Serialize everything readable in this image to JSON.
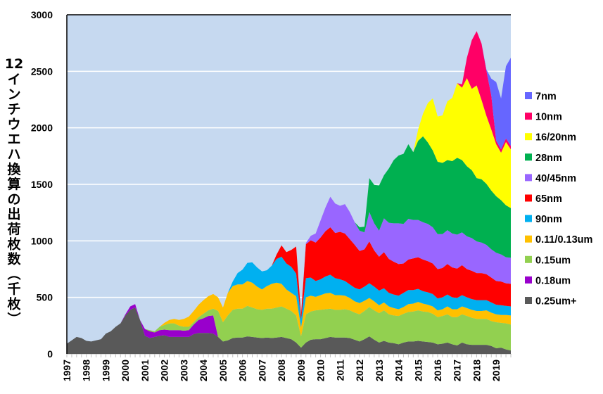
{
  "chart_data": {
    "type": "area",
    "stacked": true,
    "title": "",
    "ylabel": "12インチウエハ換算の出荷枚数（千枚）",
    "ylabel_parts": [
      "12",
      "イ",
      "ン",
      "チ",
      "ウ",
      "エ",
      "ハ",
      "換",
      "算",
      "の",
      "出",
      "荷",
      "枚",
      "数",
      "（",
      "千",
      "枚",
      "）"
    ],
    "xlabel": "",
    "ylim": [
      0,
      3000
    ],
    "yticks": [
      0,
      500,
      1000,
      1500,
      2000,
      2500,
      3000
    ],
    "ytick_labels": [
      "0",
      "500",
      "1000",
      "1500",
      "2000",
      "2500",
      "3000"
    ],
    "x_start_year": 1997,
    "x_end_year": 2019,
    "x_periods_per_year": 4,
    "xtick_labels": [
      "1997",
      "1998",
      "1999",
      "2000",
      "2001",
      "2002",
      "2003",
      "2004",
      "2005",
      "2006",
      "2007",
      "2008",
      "2009",
      "2010",
      "2011",
      "2012",
      "2013",
      "2014",
      "2015",
      "2016",
      "2017",
      "2018",
      "2019"
    ],
    "grid": true,
    "background": "#c6d9f0",
    "legend_position": "right",
    "series": [
      {
        "name": "0.25um+",
        "color": "#595959",
        "values": [
          90,
          120,
          150,
          140,
          115,
          110,
          120,
          130,
          180,
          200,
          240,
          270,
          340,
          390,
          410,
          300,
          160,
          140,
          150,
          160,
          165,
          150,
          150,
          150,
          150,
          150,
          175,
          185,
          185,
          185,
          180,
          150,
          110,
          120,
          140,
          145,
          145,
          155,
          150,
          145,
          140,
          145,
          140,
          145,
          150,
          140,
          130,
          100,
          55,
          100,
          125,
          130,
          130,
          140,
          150,
          145,
          145,
          145,
          140,
          125,
          110,
          130,
          155,
          125,
          100,
          115,
          100,
          95,
          85,
          100,
          110,
          110,
          115,
          110,
          105,
          100,
          85,
          90,
          100,
          85,
          75,
          100,
          85,
          80,
          80,
          80,
          80,
          70,
          50,
          55,
          40,
          30
        ]
      },
      {
        "name": "0.18um",
        "color": "#9900cc",
        "values": [
          0,
          0,
          0,
          0,
          0,
          0,
          0,
          0,
          0,
          0,
          0,
          0,
          10,
          30,
          30,
          0,
          60,
          60,
          40,
          50,
          50,
          60,
          60,
          60,
          55,
          60,
          85,
          115,
          130,
          150,
          160,
          0,
          0,
          0,
          0,
          0,
          0,
          0,
          0,
          0,
          0,
          0,
          0,
          0,
          0,
          0,
          0,
          0,
          0,
          0,
          0,
          0,
          0,
          0,
          0,
          0,
          0,
          0,
          0,
          0,
          0,
          0,
          0,
          0,
          0,
          0,
          0,
          0,
          0,
          0,
          0,
          0,
          0,
          0,
          0,
          0,
          0,
          0,
          0,
          0,
          0,
          0,
          0,
          0,
          0,
          0,
          0,
          0,
          0,
          0,
          0,
          0
        ]
      },
      {
        "name": "0.15um",
        "color": "#92d050",
        "values": [
          0,
          0,
          0,
          0,
          0,
          0,
          0,
          0,
          0,
          0,
          0,
          0,
          0,
          0,
          0,
          0,
          0,
          10,
          10,
          30,
          40,
          60,
          60,
          40,
          35,
          30,
          20,
          25,
          40,
          50,
          60,
          230,
          170,
          220,
          250,
          255,
          255,
          270,
          260,
          250,
          250,
          255,
          260,
          265,
          270,
          260,
          250,
          240,
          100,
          250,
          250,
          255,
          260,
          255,
          250,
          245,
          245,
          250,
          245,
          240,
          240,
          250,
          260,
          260,
          260,
          270,
          250,
          245,
          250,
          255,
          260,
          265,
          270,
          265,
          265,
          255,
          240,
          245,
          250,
          240,
          250,
          250,
          250,
          240,
          230,
          230,
          230,
          220,
          230,
          220,
          230,
          230
        ]
      },
      {
        "name": "0.11/0.13um",
        "color": "#ffc000",
        "values": [
          0,
          0,
          0,
          0,
          0,
          0,
          0,
          0,
          0,
          0,
          0,
          0,
          0,
          0,
          0,
          0,
          0,
          0,
          0,
          0,
          20,
          30,
          40,
          50,
          70,
          90,
          100,
          110,
          120,
          125,
          130,
          120,
          130,
          200,
          210,
          215,
          215,
          220,
          220,
          200,
          180,
          200,
          220,
          220,
          200,
          170,
          160,
          170,
          80,
          150,
          140,
          120,
          130,
          140,
          140,
          130,
          130,
          120,
          110,
          100,
          100,
          90,
          80,
          80,
          70,
          70,
          70,
          65,
          60,
          60,
          70,
          70,
          75,
          70,
          65,
          65,
          60,
          60,
          70,
          70,
          70,
          70,
          70,
          70,
          70,
          70,
          75,
          75,
          70,
          70,
          75,
          80
        ]
      },
      {
        "name": "90nm",
        "color": "#00b0f0",
        "values": [
          0,
          0,
          0,
          0,
          0,
          0,
          0,
          0,
          0,
          0,
          0,
          0,
          0,
          0,
          0,
          0,
          0,
          0,
          0,
          0,
          0,
          0,
          0,
          0,
          0,
          0,
          0,
          0,
          0,
          0,
          0,
          0,
          0,
          0,
          40,
          100,
          130,
          160,
          180,
          170,
          160,
          140,
          160,
          210,
          240,
          230,
          230,
          200,
          70,
          170,
          160,
          140,
          140,
          150,
          160,
          150,
          140,
          130,
          120,
          120,
          120,
          125,
          130,
          130,
          130,
          125,
          120,
          120,
          120,
          125,
          125,
          120,
          115,
          110,
          110,
          110,
          105,
          105,
          105,
          105,
          100,
          100,
          95,
          95,
          95,
          95,
          90,
          90,
          85,
          85,
          80,
          80
        ]
      },
      {
        "name": "65nm",
        "color": "#ff0000",
        "values": [
          0,
          0,
          0,
          0,
          0,
          0,
          0,
          0,
          0,
          0,
          0,
          0,
          0,
          0,
          0,
          0,
          0,
          0,
          0,
          0,
          0,
          0,
          0,
          0,
          0,
          0,
          0,
          0,
          0,
          0,
          0,
          0,
          0,
          0,
          0,
          0,
          0,
          0,
          0,
          0,
          0,
          0,
          0,
          40,
          100,
          100,
          150,
          240,
          40,
          300,
          330,
          340,
          370,
          400,
          420,
          400,
          420,
          420,
          400,
          380,
          340,
          330,
          370,
          320,
          300,
          320,
          300,
          290,
          280,
          260,
          270,
          280,
          280,
          280,
          275,
          270,
          260,
          260,
          270,
          265,
          260,
          265,
          250,
          250,
          240,
          240,
          230,
          220,
          210,
          210,
          200,
          200
        ]
      },
      {
        "name": "40/45nm",
        "color": "#9966ff",
        "values": [
          0,
          0,
          0,
          0,
          0,
          0,
          0,
          0,
          0,
          0,
          0,
          0,
          0,
          0,
          0,
          0,
          0,
          0,
          0,
          0,
          0,
          0,
          0,
          0,
          0,
          0,
          0,
          0,
          0,
          0,
          0,
          0,
          0,
          0,
          0,
          0,
          0,
          0,
          0,
          0,
          0,
          0,
          0,
          0,
          0,
          0,
          0,
          0,
          0,
          10,
          40,
          80,
          150,
          210,
          270,
          260,
          230,
          260,
          240,
          200,
          180,
          150,
          260,
          240,
          230,
          300,
          320,
          340,
          360,
          350,
          360,
          340,
          330,
          330,
          330,
          320,
          310,
          300,
          300,
          300,
          300,
          290,
          290,
          290,
          280,
          270,
          260,
          250,
          250,
          240,
          230,
          230
        ]
      },
      {
        "name": "28nm",
        "color": "#00b050",
        "values": [
          0,
          0,
          0,
          0,
          0,
          0,
          0,
          0,
          0,
          0,
          0,
          0,
          0,
          0,
          0,
          0,
          0,
          0,
          0,
          0,
          0,
          0,
          0,
          0,
          0,
          0,
          0,
          0,
          0,
          0,
          0,
          0,
          0,
          0,
          0,
          0,
          0,
          0,
          0,
          0,
          0,
          0,
          0,
          0,
          0,
          0,
          0,
          0,
          0,
          0,
          0,
          0,
          0,
          0,
          0,
          0,
          0,
          0,
          0,
          0,
          30,
          50,
          300,
          340,
          400,
          380,
          480,
          560,
          600,
          620,
          660,
          600,
          700,
          760,
          720,
          680,
          640,
          630,
          620,
          640,
          680,
          640,
          620,
          600,
          560,
          560,
          540,
          520,
          500,
          480,
          460,
          440
        ]
      },
      {
        "name": "16/20nm",
        "color": "#ffff00",
        "values": [
          0,
          0,
          0,
          0,
          0,
          0,
          0,
          0,
          0,
          0,
          0,
          0,
          0,
          0,
          0,
          0,
          0,
          0,
          0,
          0,
          0,
          0,
          0,
          0,
          0,
          0,
          0,
          0,
          0,
          0,
          0,
          0,
          0,
          0,
          0,
          0,
          0,
          0,
          0,
          0,
          0,
          0,
          0,
          0,
          0,
          0,
          0,
          0,
          0,
          0,
          0,
          0,
          0,
          0,
          0,
          0,
          0,
          0,
          0,
          0,
          0,
          0,
          0,
          0,
          0,
          0,
          0,
          0,
          0,
          0,
          0,
          0,
          100,
          200,
          350,
          460,
          400,
          420,
          520,
          560,
          660,
          640,
          780,
          720,
          820,
          700,
          600,
          540,
          460,
          420,
          560,
          520
        ]
      },
      {
        "name": "10nm",
        "color": "#ff0066",
        "values": [
          0,
          0,
          0,
          0,
          0,
          0,
          0,
          0,
          0,
          0,
          0,
          0,
          0,
          0,
          0,
          0,
          0,
          0,
          0,
          0,
          0,
          0,
          0,
          0,
          0,
          0,
          0,
          0,
          0,
          0,
          0,
          0,
          0,
          0,
          0,
          0,
          0,
          0,
          0,
          0,
          0,
          0,
          0,
          0,
          0,
          0,
          0,
          0,
          0,
          0,
          0,
          0,
          0,
          0,
          0,
          0,
          0,
          0,
          0,
          0,
          0,
          0,
          0,
          0,
          0,
          0,
          0,
          0,
          0,
          0,
          0,
          0,
          0,
          0,
          0,
          0,
          0,
          0,
          0,
          0,
          0,
          30,
          180,
          430,
          480,
          500,
          400,
          300,
          30,
          30,
          30,
          30
        ]
      },
      {
        "name": "7nm",
        "color": "#6666ff",
        "values": [
          0,
          0,
          0,
          0,
          0,
          0,
          0,
          0,
          0,
          0,
          0,
          0,
          0,
          0,
          0,
          0,
          0,
          0,
          0,
          0,
          0,
          0,
          0,
          0,
          0,
          0,
          0,
          0,
          0,
          0,
          0,
          0,
          0,
          0,
          0,
          0,
          0,
          0,
          0,
          0,
          0,
          0,
          0,
          0,
          0,
          0,
          0,
          0,
          0,
          0,
          0,
          0,
          0,
          0,
          0,
          0,
          0,
          0,
          0,
          0,
          0,
          0,
          0,
          0,
          0,
          0,
          0,
          0,
          0,
          0,
          0,
          0,
          0,
          0,
          0,
          0,
          0,
          0,
          0,
          0,
          0,
          0,
          0,
          0,
          0,
          0,
          10,
          150,
          520,
          450,
          640,
          780
        ]
      }
    ],
    "legend_order": [
      "7nm",
      "10nm",
      "16/20nm",
      "28nm",
      "40/45nm",
      "65nm",
      "90nm",
      "0.11/0.13um",
      "0.15um",
      "0.18um",
      "0.25um+"
    ]
  }
}
